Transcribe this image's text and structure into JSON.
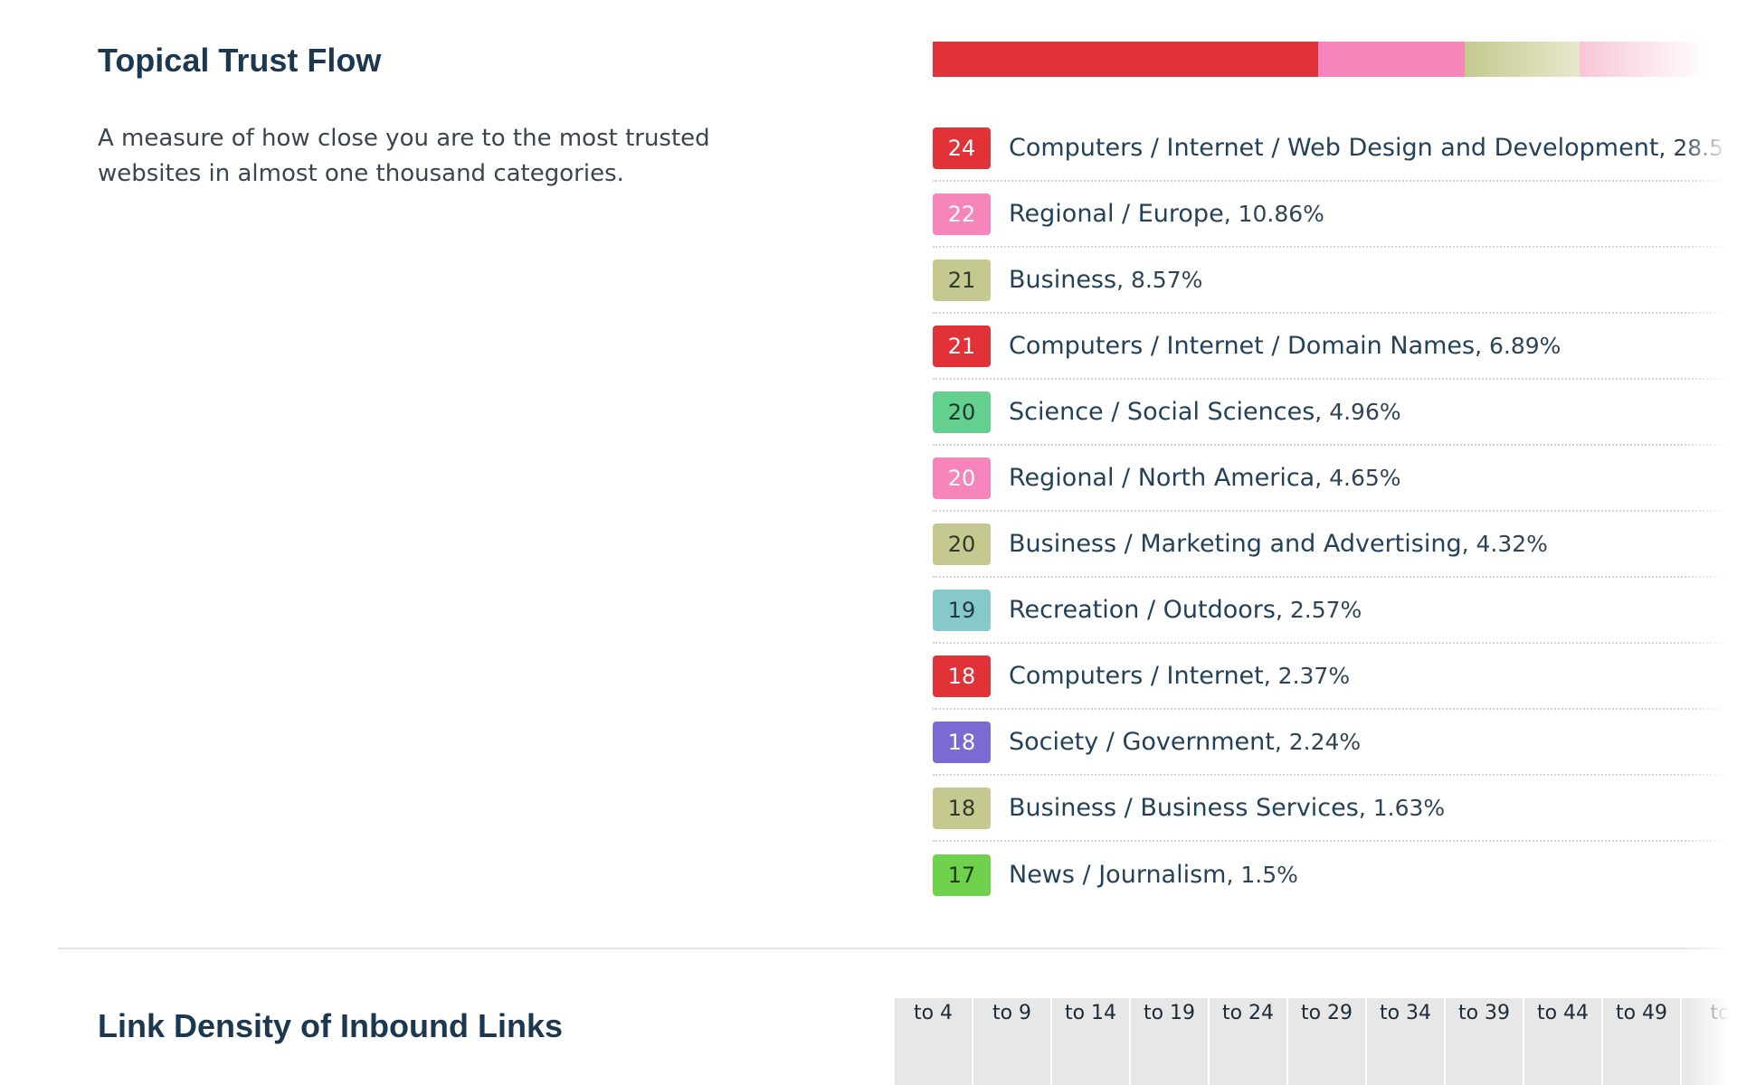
{
  "topical_trust_flow": {
    "title": "Topical Trust Flow",
    "description": "A measure of how close you are to the most trusted websites in almost one thousand categories.",
    "distribution_bar": [
      {
        "color": "#e03237",
        "share": 0.605
      },
      {
        "color": "#f685bc",
        "share": 0.23
      },
      {
        "color": "#c6c98f",
        "share": 0.18,
        "fade_to": "#e7e8cc"
      },
      {
        "color": "#f8c6d8",
        "share": 0.2,
        "fade_to": "#ffffff"
      }
    ],
    "topics": [
      {
        "score": "24",
        "name": "Computers / Internet / Web Design and Development",
        "percent": ", 28.5",
        "badge_color": "#e03237",
        "text_color": "#ffffff"
      },
      {
        "score": "22",
        "name": "Regional / Europe",
        "percent": ", 10.86%",
        "badge_color": "#f685bc",
        "text_color": "#ffffff"
      },
      {
        "score": "21",
        "name": "Business",
        "percent": ", 8.57%",
        "badge_color": "#c6c98f",
        "text_color": "#2e3a2a"
      },
      {
        "score": "21",
        "name": "Computers / Internet / Domain Names",
        "percent": ", 6.89%",
        "badge_color": "#e03237",
        "text_color": "#ffffff"
      },
      {
        "score": "20",
        "name": "Science / Social Sciences",
        "percent": ", 4.96%",
        "badge_color": "#63d08f",
        "text_color": "#1c3a2a"
      },
      {
        "score": "20",
        "name": "Regional / North America",
        "percent": ", 4.65%",
        "badge_color": "#f685bc",
        "text_color": "#ffffff"
      },
      {
        "score": "20",
        "name": "Business / Marketing and Advertising",
        "percent": ", 4.32%",
        "badge_color": "#c6c98f",
        "text_color": "#2e3a2a"
      },
      {
        "score": "19",
        "name": "Recreation / Outdoors",
        "percent": ", 2.57%",
        "badge_color": "#86c9cb",
        "text_color": "#1f3a44"
      },
      {
        "score": "18",
        "name": "Computers / Internet",
        "percent": ", 2.37%",
        "badge_color": "#e03237",
        "text_color": "#ffffff"
      },
      {
        "score": "18",
        "name": "Society / Government",
        "percent": ", 2.24%",
        "badge_color": "#7a6bd3",
        "text_color": "#ffffff"
      },
      {
        "score": "18",
        "name": "Business / Business Services",
        "percent": ", 1.63%",
        "badge_color": "#c6c98f",
        "text_color": "#2e3a2a"
      },
      {
        "score": "17",
        "name": "News / Journalism",
        "percent": ", 1.5%",
        "badge_color": "#6fd14c",
        "text_color": "#1f3a1a"
      }
    ]
  },
  "link_density": {
    "title": "Link Density of Inbound Links",
    "columns": [
      "to 4",
      "to 9",
      "to 14",
      "to 19",
      "to 24",
      "to 29",
      "to 34",
      "to 39",
      "to 44",
      "to 49",
      "to"
    ]
  }
}
